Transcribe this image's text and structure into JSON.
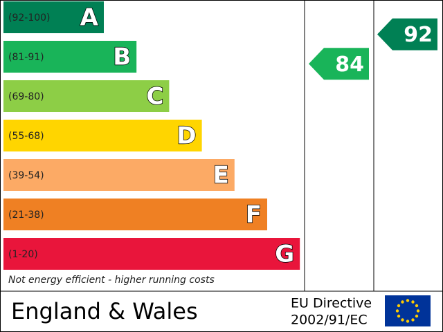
{
  "chart_data": {
    "type": "energy-rating",
    "bands": [
      {
        "range": "(92-100)",
        "letter": "A",
        "color": "#008054"
      },
      {
        "range": "(81-91)",
        "letter": "B",
        "color": "#19b459"
      },
      {
        "range": "(69-80)",
        "letter": "C",
        "color": "#8dce46"
      },
      {
        "range": "(55-68)",
        "letter": "D",
        "color": "#ffd500"
      },
      {
        "range": "(39-54)",
        "letter": "E",
        "color": "#fcaa65"
      },
      {
        "range": "(21-38)",
        "letter": "F",
        "color": "#ef8023"
      },
      {
        "range": "(1-20)",
        "letter": "G",
        "color": "#e9153b"
      }
    ],
    "footnote": "Not energy efficient - higher running costs",
    "current": 84,
    "potential": 92,
    "region": "England & Wales",
    "directive": [
      "EU Directive",
      "2002/91/EC"
    ]
  }
}
